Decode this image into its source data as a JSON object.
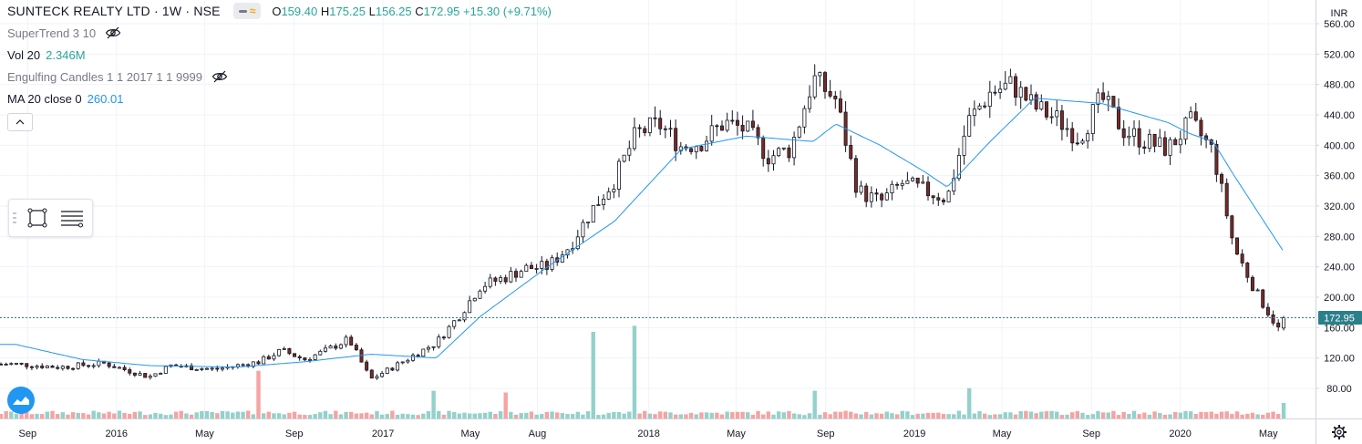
{
  "header": {
    "symbol": "SUNTECK REALTY LTD · 1W · NSE",
    "open_label": "O",
    "open": "159.40",
    "high_label": "H",
    "high": "175.25",
    "low_label": "L",
    "low": "156.25",
    "close_label": "C",
    "close": "172.95",
    "change": "+15.30 (+9.71%)"
  },
  "indicators": {
    "supertrend": "SuperTrend 3 10",
    "volume": "Vol 20",
    "volume_value": "2.346M",
    "engulfing": "Engulfing Candles 1 1 2017 1 1 9999",
    "ma": "MA 20 close 0",
    "ma_value": "260.01"
  },
  "colors": {
    "up": "#26a69a",
    "down": "#ef5350",
    "wick": "#131722",
    "up_fill": "#ffffff",
    "down_fill": "#7a2a24",
    "ma_line": "#2196f3",
    "vol_up": "#93d1ca",
    "vol_down": "#f5a3a3",
    "grid": "#f0f3fa",
    "last_price_tag": "#2a7f8a"
  },
  "icons": {
    "eye": "eye-off-icon",
    "collapse": "chevron-up-icon",
    "rect_tool": "rectangle-tool-icon",
    "lines_tool": "lines-tool-icon",
    "logo": "tradingview-logo-icon",
    "settings": "gear-icon"
  },
  "chart_data": {
    "type": "candlestick",
    "interval": "1W",
    "currency_label": "INR",
    "last_price": "172.95",
    "ylim": [
      40,
      580
    ],
    "y_ticks": [
      80,
      120,
      160,
      200,
      240,
      280,
      320,
      360,
      400,
      440,
      480,
      520,
      560
    ],
    "y_tick_labels": [
      "80.00",
      "120.00",
      "160.00",
      "200.00",
      "240.00",
      "280.00",
      "320.00",
      "360.00",
      "400.00",
      "440.00",
      "480.00",
      "520.00",
      "560.00"
    ],
    "x_labels": [
      {
        "date": "2015-09",
        "label": "Sep"
      },
      {
        "date": "2016-01",
        "label": "2016"
      },
      {
        "date": "2016-05",
        "label": "May"
      },
      {
        "date": "2016-09",
        "label": "Sep"
      },
      {
        "date": "2017-01",
        "label": "2017"
      },
      {
        "date": "2017-05",
        "label": "May"
      },
      {
        "date": "2017-08",
        "label": "Aug"
      },
      {
        "date": "2018-01",
        "label": "2018"
      },
      {
        "date": "2018-05",
        "label": "May"
      },
      {
        "date": "2018-09",
        "label": "Sep"
      },
      {
        "date": "2019-01",
        "label": "2019"
      },
      {
        "date": "2019-05",
        "label": "May"
      },
      {
        "date": "2019-09",
        "label": "Sep"
      },
      {
        "date": "2020-01",
        "label": "2020"
      },
      {
        "date": "2020-05",
        "label": "May"
      }
    ],
    "close_anchors": [
      [
        "2015-08",
        112
      ],
      [
        "2015-10",
        108
      ],
      [
        "2015-12",
        113
      ],
      [
        "2016-02",
        95
      ],
      [
        "2016-03",
        110
      ],
      [
        "2016-05",
        105
      ],
      [
        "2016-07",
        115
      ],
      [
        "2016-08",
        130
      ],
      [
        "2016-09",
        118
      ],
      [
        "2016-10",
        130
      ],
      [
        "2016-11",
        145
      ],
      [
        "2016-12",
        92
      ],
      [
        "2017-01",
        108
      ],
      [
        "2017-02",
        125
      ],
      [
        "2017-03",
        140
      ],
      [
        "2017-04",
        175
      ],
      [
        "2017-05",
        215
      ],
      [
        "2017-06",
        225
      ],
      [
        "2017-07",
        238
      ],
      [
        "2017-08",
        240
      ],
      [
        "2017-09",
        268
      ],
      [
        "2017-10",
        315
      ],
      [
        "2017-11",
        355
      ],
      [
        "2017-12",
        415
      ],
      [
        "2018-01",
        428
      ],
      [
        "2018-02",
        398
      ],
      [
        "2018-03",
        405
      ],
      [
        "2018-04",
        430
      ],
      [
        "2018-05",
        420
      ],
      [
        "2018-06",
        385
      ],
      [
        "2018-07",
        395
      ],
      [
        "2018-08",
        488
      ],
      [
        "2018-09",
        460
      ],
      [
        "2018-10",
        340
      ],
      [
        "2018-11",
        325
      ],
      [
        "2018-12",
        350
      ],
      [
        "2019-01",
        340
      ],
      [
        "2019-02",
        330
      ],
      [
        "2019-03",
        430
      ],
      [
        "2019-04",
        470
      ],
      [
        "2019-05",
        480
      ],
      [
        "2019-06",
        450
      ],
      [
        "2019-07",
        435
      ],
      [
        "2019-08",
        410
      ],
      [
        "2019-09",
        462
      ],
      [
        "2019-10",
        420
      ],
      [
        "2019-11",
        405
      ],
      [
        "2019-12",
        395
      ],
      [
        "2020-01",
        430
      ],
      [
        "2020-02",
        392
      ],
      [
        "2020-03",
        265
      ],
      [
        "2020-04",
        205
      ],
      [
        "2020-05",
        158
      ],
      [
        "2020-05-22",
        172.95
      ]
    ],
    "ma_anchors": [
      [
        "2015-08",
        138
      ],
      [
        "2015-11",
        118
      ],
      [
        "2016-02",
        110
      ],
      [
        "2016-06",
        108
      ],
      [
        "2016-09",
        115
      ],
      [
        "2016-12",
        125
      ],
      [
        "2017-03",
        120
      ],
      [
        "2017-05",
        175
      ],
      [
        "2017-08",
        240
      ],
      [
        "2017-11",
        300
      ],
      [
        "2018-02",
        395
      ],
      [
        "2018-05",
        412
      ],
      [
        "2018-08",
        405
      ],
      [
        "2018-09",
        428
      ],
      [
        "2018-11",
        400
      ],
      [
        "2019-01",
        365
      ],
      [
        "2019-02",
        345
      ],
      [
        "2019-04",
        405
      ],
      [
        "2019-06",
        462
      ],
      [
        "2019-09",
        455
      ],
      [
        "2019-12",
        430
      ],
      [
        "2020-01",
        415
      ],
      [
        "2020-02",
        405
      ],
      [
        "2020-03",
        360
      ],
      [
        "2020-05-22",
        260.01
      ]
    ],
    "volume_spikes": [
      {
        "date": "2016-07",
        "dir": "down",
        "rel": 0.55
      },
      {
        "date": "2017-03",
        "dir": "up",
        "rel": 0.32
      },
      {
        "date": "2017-06",
        "dir": "down",
        "rel": 0.3
      },
      {
        "date": "2017-10",
        "dir": "up",
        "rel": 1.0
      },
      {
        "date": "2017-12",
        "dir": "up",
        "rel": 1.07
      },
      {
        "date": "2018-08",
        "dir": "up",
        "rel": 0.32
      },
      {
        "date": "2019-03",
        "dir": "up",
        "rel": 0.35
      },
      {
        "date": "2020-05-22",
        "dir": "up",
        "rel": 0.18
      }
    ]
  }
}
